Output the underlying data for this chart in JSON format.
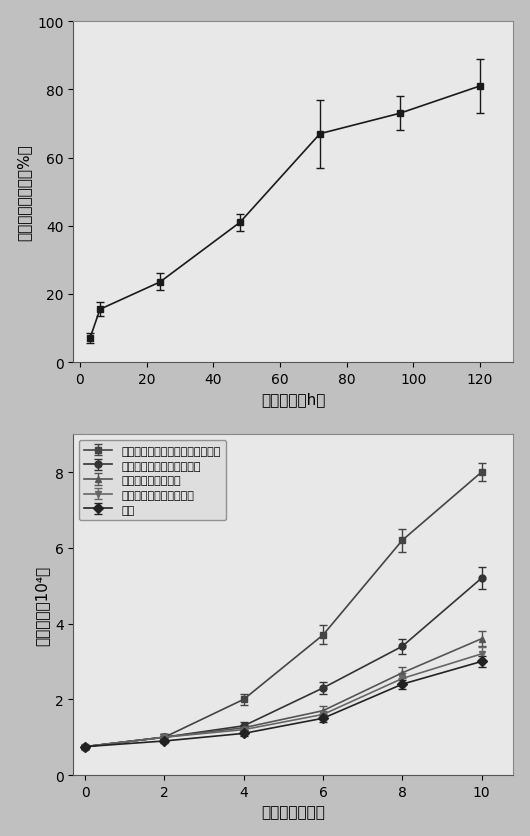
{
  "plot1": {
    "x": [
      3,
      6,
      24,
      48,
      72,
      96,
      120
    ],
    "y": [
      7,
      15.5,
      23.5,
      41,
      67,
      73,
      81
    ],
    "yerr": [
      1.5,
      2,
      2.5,
      2.5,
      10,
      5,
      8
    ],
    "xlabel": "释放时间（h）",
    "ylabel": "生长因子释放率（%）",
    "ylim": [
      0,
      100
    ],
    "xlim": [
      -2,
      130
    ],
    "xticks": [
      0,
      20,
      40,
      60,
      80,
      100,
      120
    ],
    "yticks": [
      0,
      20,
      40,
      60,
      80,
      100
    ]
  },
  "plot2": {
    "series": [
      {
        "label": "负载血管内皮细胞因子的多孔材料",
        "x": [
          0,
          2,
          4,
          6,
          8,
          10
        ],
        "y": [
          0.75,
          1.0,
          2.0,
          3.7,
          6.2,
          8.0
        ],
        "yerr": [
          0.05,
          0.08,
          0.15,
          0.25,
          0.3,
          0.25
        ],
        "marker": "s",
        "color": "#444444",
        "linestyle": "-"
      },
      {
        "label": "负载硫酸软骨素的多孔材料",
        "x": [
          0,
          2,
          4,
          6,
          8,
          10
        ],
        "y": [
          0.75,
          1.0,
          1.3,
          2.3,
          3.4,
          5.2
        ],
        "yerr": [
          0.05,
          0.08,
          0.1,
          0.15,
          0.2,
          0.3
        ],
        "marker": "o",
        "color": "#333333",
        "linestyle": "-"
      },
      {
        "label": "负载肝素的多孔材料",
        "x": [
          0,
          2,
          4,
          6,
          8,
          10
        ],
        "y": [
          0.75,
          1.0,
          1.25,
          1.7,
          2.7,
          3.6
        ],
        "yerr": [
          0.05,
          0.08,
          0.08,
          0.12,
          0.15,
          0.2
        ],
        "marker": "^",
        "color": "#555555",
        "linestyle": "-"
      },
      {
        "label": "负载透明质酸的多孔材料",
        "x": [
          0,
          2,
          4,
          6,
          8,
          10
        ],
        "y": [
          0.75,
          1.0,
          1.2,
          1.6,
          2.55,
          3.2
        ],
        "yerr": [
          0.05,
          0.08,
          0.08,
          0.1,
          0.15,
          0.18
        ],
        "marker": "v",
        "color": "#666666",
        "linestyle": "-"
      },
      {
        "label": "对照",
        "x": [
          0,
          2,
          4,
          6,
          8,
          10
        ],
        "y": [
          0.75,
          0.9,
          1.1,
          1.5,
          2.4,
          3.0
        ],
        "yerr": [
          0.05,
          0.06,
          0.08,
          0.1,
          0.12,
          0.15
        ],
        "marker": "D",
        "color": "#222222",
        "linestyle": "-"
      }
    ],
    "xlabel": "培养时间（天）",
    "ylabel": "细胞数量（10⁴）",
    "ylim": [
      0,
      9
    ],
    "xlim": [
      -0.3,
      10.8
    ],
    "xticks": [
      0,
      2,
      4,
      6,
      8,
      10
    ],
    "yticks": [
      0,
      2,
      4,
      6,
      8
    ]
  },
  "bg_color": "#c8c8c8",
  "plot_bg": "#e8e8e8",
  "fig_bg": "#c0c0c0",
  "font_size": 11,
  "tick_font_size": 10
}
